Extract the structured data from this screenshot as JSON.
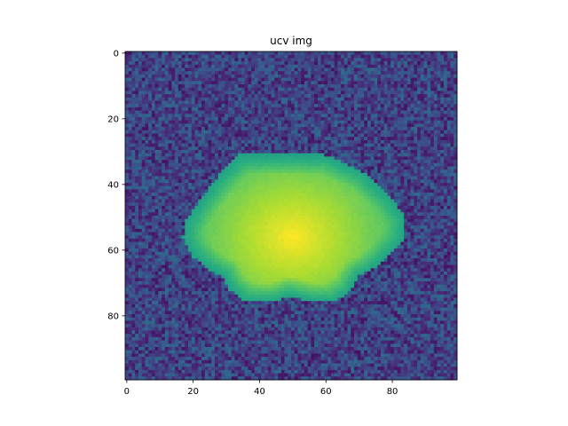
{
  "chart_data": {
    "type": "heatmap",
    "title": "ucv img",
    "xlabel": "",
    "ylabel": "",
    "image_size": [
      100,
      100
    ],
    "colormap": "viridis",
    "xlim": [
      -0.5,
      99.5
    ],
    "ylim": [
      99.5,
      -0.5
    ],
    "x_ticks": [
      0,
      20,
      40,
      60,
      80
    ],
    "y_ticks": [
      0,
      20,
      40,
      60,
      80
    ],
    "background_level_range": [
      0.05,
      0.35
    ],
    "object": {
      "shape": "rounded pentagon blob",
      "outline": [
        [
          34,
          31
        ],
        [
          60,
          31
        ],
        [
          71,
          36
        ],
        [
          80,
          44
        ],
        [
          84,
          50
        ],
        [
          84,
          56
        ],
        [
          80,
          61
        ],
        [
          74,
          66
        ],
        [
          70,
          68
        ],
        [
          67,
          73
        ],
        [
          62,
          76
        ],
        [
          56,
          76
        ],
        [
          49,
          74
        ],
        [
          44,
          76
        ],
        [
          36,
          76
        ],
        [
          31,
          72
        ],
        [
          29,
          68
        ],
        [
          25,
          66
        ],
        [
          20,
          62
        ],
        [
          17,
          56
        ],
        [
          18,
          51
        ],
        [
          22,
          45
        ],
        [
          28,
          37
        ]
      ],
      "edge_level": 0.58,
      "peak_center": [
        50,
        56
      ],
      "peak_level": 1.0
    }
  }
}
